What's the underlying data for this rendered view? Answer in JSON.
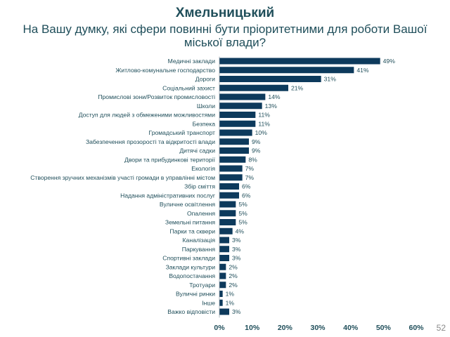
{
  "header": {
    "city": "Хмельницький",
    "question": "На Вашу думку, які сфери повинні бути пріоритетними для роботи Вашої міської влади?"
  },
  "page_number": "52",
  "colors": {
    "bar": "#0d3a5c",
    "title": "#1f4e5a",
    "axis_text": "#1f4e5a"
  },
  "chart_data": {
    "type": "bar",
    "orientation": "horizontal",
    "title": "",
    "xlabel": "",
    "ylabel": "",
    "xlim": [
      0,
      60
    ],
    "x_ticks": [
      "0%",
      "10%",
      "20%",
      "30%",
      "40%",
      "50%",
      "60%"
    ],
    "grid": false,
    "categories": [
      "Медичні заклади",
      "Житлово-комунальне господарство",
      "Дороги",
      "Соціальний захист",
      "Промислові зони/Розвиток промисловості",
      "Школи",
      "Доступ для людей з обмеженими можливостями",
      "Безпека",
      "Громадський транспорт",
      "Забезпечення прозорості та відкритості влади",
      "Дитячі садки",
      "Двори та прибудинкові території",
      "Екологія",
      "Створення зручних механізмів участі громади в управлінні містом",
      "Збір сміття",
      "Надання адміністративних послуг",
      "Вуличне освітлення",
      "Опалення",
      "Земельні питання",
      "Парки та сквери",
      "Каналізація",
      "Паркування",
      "Спортивні заклади",
      "Заклади культури",
      "Водопостачання",
      "Тротуари",
      "Вуличні ринки",
      "Інше",
      "Важко відповісти"
    ],
    "values": [
      49,
      41,
      31,
      21,
      14,
      13,
      11,
      11,
      10,
      9,
      9,
      8,
      7,
      7,
      6,
      6,
      5,
      5,
      5,
      4,
      3,
      3,
      3,
      2,
      2,
      2,
      1,
      1,
      3
    ],
    "value_labels": [
      "49%",
      "41%",
      "31%",
      "21%",
      "14%",
      "13%",
      "11%",
      "11%",
      "10%",
      "9%",
      "9%",
      "8%",
      "7%",
      "7%",
      "6%",
      "6%",
      "5%",
      "5%",
      "5%",
      "4%",
      "3%",
      "3%",
      "3%",
      "2%",
      "2%",
      "2%",
      "1%",
      "1%",
      "3%"
    ]
  }
}
